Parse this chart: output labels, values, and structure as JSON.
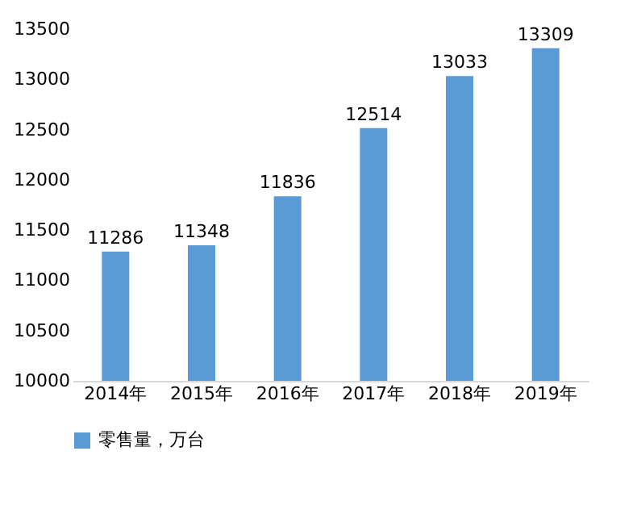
{
  "chart_data": {
    "type": "bar",
    "categories": [
      "2014年",
      "2015年",
      "2016年",
      "2017年",
      "2018年",
      "2019年"
    ],
    "series": [
      {
        "name": "零售量，万台",
        "color": "#5b9bd5",
        "values": [
          11286,
          11348,
          11836,
          12514,
          13033,
          13309
        ]
      }
    ],
    "ylim": [
      10000,
      13500
    ],
    "yticks": [
      10000,
      10500,
      11000,
      11500,
      12000,
      12500,
      13000,
      13500
    ],
    "data_labels": true,
    "legend": "bottom"
  }
}
